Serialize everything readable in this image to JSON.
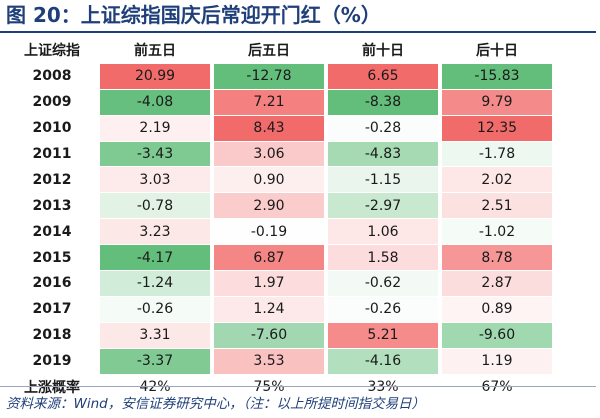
{
  "title": "图 20：上证综指国庆后常迎开门红（%）",
  "chart_data": {
    "type": "table",
    "title": "图 20：上证综指国庆后常迎开门红（%）",
    "columns": [
      "上证综指",
      "前五日",
      "后五日",
      "前十日",
      "后十日"
    ],
    "rows": [
      {
        "year": "2008",
        "values": [
          "20.99",
          "-12.78",
          "6.65",
          "-15.83"
        ]
      },
      {
        "year": "2009",
        "values": [
          "-4.08",
          "7.21",
          "-8.38",
          "9.79"
        ]
      },
      {
        "year": "2010",
        "values": [
          "2.19",
          "8.43",
          "-0.28",
          "12.35"
        ]
      },
      {
        "year": "2011",
        "values": [
          "-3.43",
          "3.06",
          "-4.83",
          "-1.78"
        ]
      },
      {
        "year": "2012",
        "values": [
          "3.03",
          "0.90",
          "-1.15",
          "2.02"
        ]
      },
      {
        "year": "2013",
        "values": [
          "-0.78",
          "2.90",
          "-2.97",
          "2.51"
        ]
      },
      {
        "year": "2014",
        "values": [
          "3.23",
          "-0.19",
          "1.06",
          "-1.02"
        ]
      },
      {
        "year": "2015",
        "values": [
          "-4.17",
          "6.87",
          "1.58",
          "8.78"
        ]
      },
      {
        "year": "2016",
        "values": [
          "-1.24",
          "1.97",
          "-0.62",
          "2.87"
        ]
      },
      {
        "year": "2017",
        "values": [
          "-0.26",
          "1.24",
          "-0.26",
          "0.89"
        ]
      },
      {
        "year": "2018",
        "values": [
          "3.31",
          "-7.60",
          "5.21",
          "-9.60"
        ]
      },
      {
        "year": "2019",
        "values": [
          "-3.37",
          "3.53",
          "-4.16",
          "1.19"
        ]
      }
    ],
    "summary_row": {
      "label": "上涨概率",
      "values": [
        "42%",
        "75%",
        "33%",
        "67%"
      ]
    },
    "colors": {
      "positive_strong": "#f26b6b",
      "negative_strong": "#63be7b",
      "neutral": "#ffffff"
    }
  },
  "source": "资料来源：Wind，安信证券研究中心，（注：以上所提时间指交易日）"
}
